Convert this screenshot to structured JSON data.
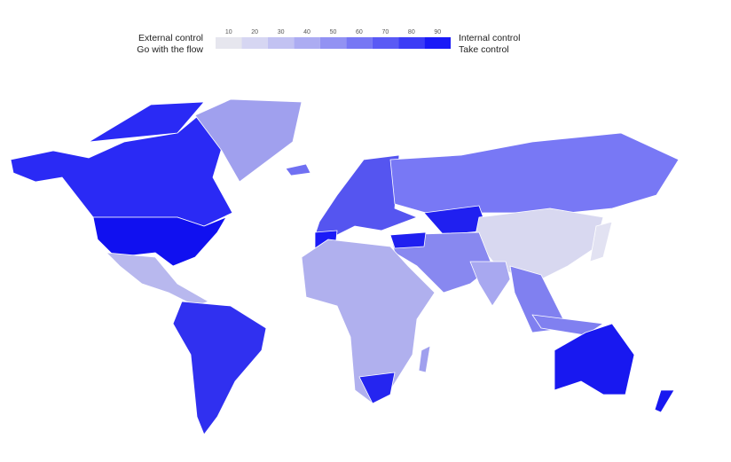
{
  "chart_data": {
    "type": "choropleth",
    "left_labels": [
      "External control",
      "Go with the flow"
    ],
    "right_labels": [
      "Internal control",
      "Take control"
    ],
    "colorbar": {
      "lim": [
        5,
        95
      ],
      "ticks": [
        10,
        20,
        30,
        40,
        50,
        60,
        70,
        80,
        90
      ],
      "colors": [
        "#e6e6ee",
        "#d6d6f2",
        "#c2c2f2",
        "#acacf2",
        "#9292f3",
        "#7777f4",
        "#5a5af5",
        "#3c3cf6",
        "#1a1af7"
      ]
    }
  }
}
